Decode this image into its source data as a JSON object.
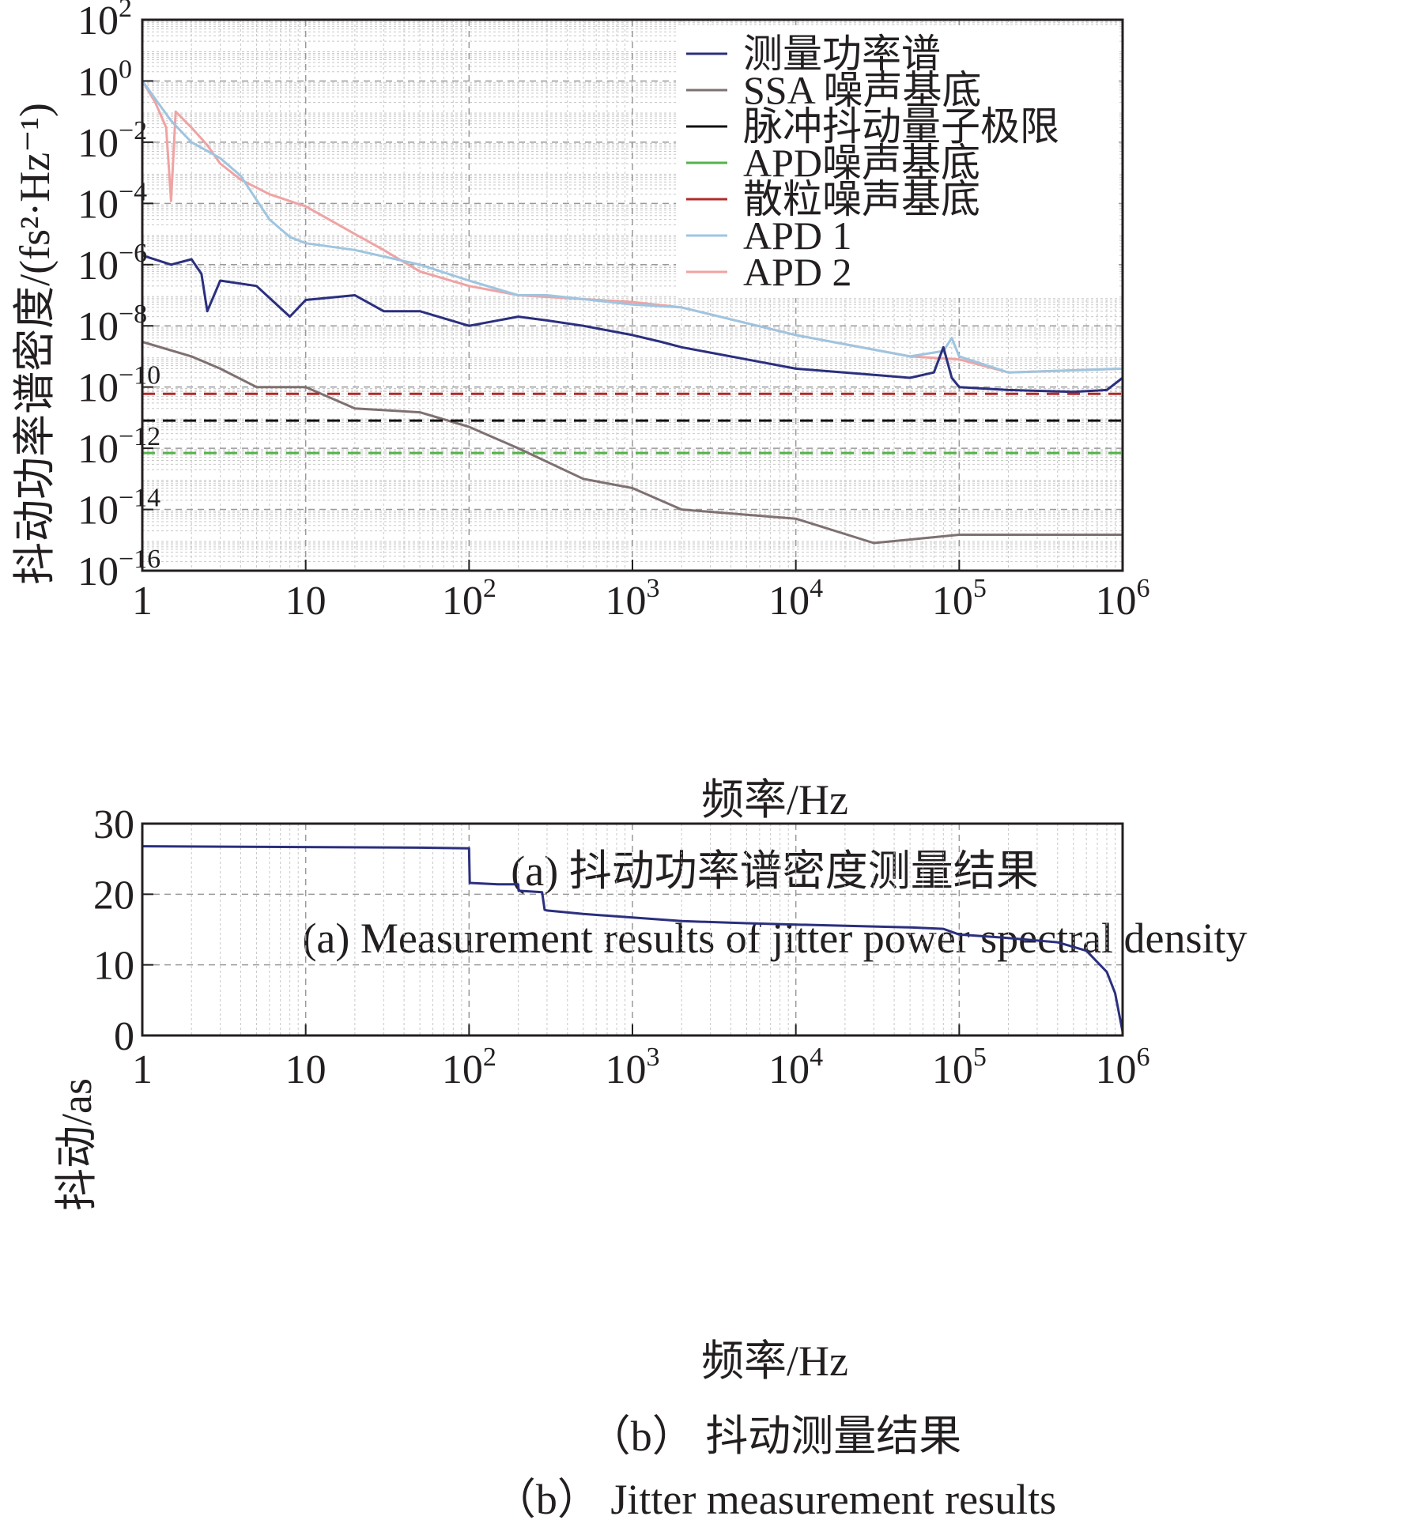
{
  "chart_data": [
    {
      "type": "line",
      "caption_cn": "(a) 抖动功率谱密度测量结果",
      "caption_en": "(a) Measurement results of jitter power spectral density",
      "xlabel": "频率/Hz",
      "ylabel": "抖动功率谱密度/(fs²·Hz⁻¹)",
      "x_scale": "log",
      "y_scale": "log",
      "xlim": [
        1,
        1000000
      ],
      "ylim": [
        1e-16,
        100
      ],
      "x_ticks": [
        {
          "value": 1,
          "base": "1",
          "exp": ""
        },
        {
          "value": 10,
          "base": "10",
          "exp": ""
        },
        {
          "value": 100,
          "base": "10",
          "exp": "2"
        },
        {
          "value": 1000,
          "base": "10",
          "exp": "3"
        },
        {
          "value": 10000,
          "base": "10",
          "exp": "4"
        },
        {
          "value": 100000,
          "base": "10",
          "exp": "5"
        },
        {
          "value": 1000000,
          "base": "10",
          "exp": "6"
        }
      ],
      "y_ticks": [
        {
          "value": 100,
          "base": "10",
          "exp": "2"
        },
        {
          "value": 1,
          "base": "10",
          "exp": "0"
        },
        {
          "value": 0.01,
          "base": "10",
          "exp": "−2"
        },
        {
          "value": 0.0001,
          "base": "10",
          "exp": "−4"
        },
        {
          "value": 1e-06,
          "base": "10",
          "exp": "−6"
        },
        {
          "value": 1e-08,
          "base": "10",
          "exp": "−8"
        },
        {
          "value": 1e-10,
          "base": "10",
          "exp": "−10"
        },
        {
          "value": 1e-12,
          "base": "10",
          "exp": "−12"
        },
        {
          "value": 1e-14,
          "base": "10",
          "exp": "−14"
        },
        {
          "value": 1e-16,
          "base": "10",
          "exp": "−16"
        }
      ],
      "grid": true,
      "legend_position": "top-right",
      "series": [
        {
          "name": "APD 2",
          "color": "#f0a3a3",
          "x": [
            1,
            1.2,
            1.4,
            1.5,
            1.6,
            2,
            2.5,
            3,
            4,
            6,
            10,
            20,
            30,
            50,
            100,
            200,
            1000,
            2000,
            10000,
            50000,
            100000,
            200000,
            1000000
          ],
          "y": [
            1,
            0.2,
            0.03,
            0.00012,
            0.1,
            0.03,
            0.008,
            0.002,
            0.0006,
            0.0002,
            8e-05,
            1e-05,
            3e-06,
            6e-07,
            2e-07,
            1e-07,
            6e-08,
            4e-08,
            5e-09,
            1e-09,
            8e-10,
            3e-10,
            4e-10
          ]
        },
        {
          "name": "APD 1",
          "color": "#9ec5e0",
          "x": [
            1,
            1.5,
            2,
            3,
            4,
            6,
            8,
            10,
            20,
            50,
            100,
            200,
            300,
            1000,
            2000,
            10000,
            50000,
            80000,
            90000,
            100000,
            200000,
            1000000
          ],
          "y": [
            1,
            0.05,
            0.01,
            0.003,
            0.0008,
            3e-05,
            8e-06,
            5e-06,
            3e-06,
            1e-06,
            3e-07,
            1e-07,
            1e-07,
            5e-08,
            4e-08,
            5e-09,
            1e-09,
            1.5e-09,
            4e-09,
            1e-09,
            3e-10,
            4e-10
          ]
        },
        {
          "name": "测量功率谱",
          "color": "#2b2f7e",
          "x": [
            1,
            1.5,
            2,
            2.3,
            2.5,
            3,
            5,
            8,
            10,
            20,
            30,
            50,
            100,
            200,
            300,
            500,
            1000,
            1500,
            2000,
            5000,
            10000,
            30000,
            50000,
            70000,
            80000,
            90000,
            100000,
            200000,
            500000,
            800000,
            1000000
          ],
          "y": [
            2e-06,
            1e-06,
            1.5e-06,
            5e-07,
            3e-08,
            3e-07,
            2e-07,
            2e-08,
            7e-08,
            1e-07,
            3e-08,
            3e-08,
            1e-08,
            2e-08,
            1.5e-08,
            1e-08,
            5e-09,
            3e-09,
            2e-09,
            8e-10,
            4e-10,
            2.5e-10,
            2e-10,
            3e-10,
            2e-09,
            2e-10,
            1e-10,
            8e-11,
            7e-11,
            8e-11,
            2e-10
          ]
        },
        {
          "name": "SSA 噪声基底",
          "color": "#7f7071",
          "x": [
            1,
            2,
            3,
            5,
            10,
            20,
            50,
            100,
            200,
            500,
            1000,
            2000,
            10000,
            30000,
            100000,
            1000000
          ],
          "y": [
            3e-09,
            1e-09,
            4e-10,
            1e-10,
            1e-10,
            2e-11,
            1.5e-11,
            5e-12,
            1e-12,
            1e-13,
            5e-14,
            1e-14,
            5e-15,
            8e-16,
            1.5e-15,
            1.5e-15
          ]
        },
        {
          "name": "散粒噪声基底",
          "color": "#b22a2a",
          "dashed": true,
          "x": [
            1,
            1000000
          ],
          "y": [
            6e-11,
            6e-11
          ]
        },
        {
          "name": "脉冲抖动量子极限",
          "color": "#111111",
          "dashed": true,
          "x": [
            1,
            1000000
          ],
          "y": [
            8e-12,
            8e-12
          ]
        },
        {
          "name": "APD噪声基底",
          "color": "#55b24a",
          "dashed": true,
          "x": [
            1,
            1000000
          ],
          "y": [
            7e-13,
            7e-13
          ]
        }
      ],
      "legend_order": [
        "测量功率谱",
        "SSA 噪声基底",
        "脉冲抖动量子极限",
        "APD噪声基底",
        "散粒噪声基底",
        "APD 1",
        "APD 2"
      ]
    },
    {
      "type": "line",
      "caption_cn": "（b） 抖动测量结果",
      "caption_en": "（b） Jitter measurement results",
      "xlabel": "频率/Hz",
      "ylabel": "抖动/as",
      "x_scale": "log",
      "xlim": [
        1,
        1000000
      ],
      "ylim": [
        0,
        30
      ],
      "x_ticks": [
        {
          "value": 1,
          "base": "1",
          "exp": ""
        },
        {
          "value": 10,
          "base": "10",
          "exp": ""
        },
        {
          "value": 100,
          "base": "10",
          "exp": "2"
        },
        {
          "value": 1000,
          "base": "10",
          "exp": "3"
        },
        {
          "value": 10000,
          "base": "10",
          "exp": "4"
        },
        {
          "value": 100000,
          "base": "10",
          "exp": "5"
        },
        {
          "value": 1000000,
          "base": "10",
          "exp": "6"
        }
      ],
      "y_ticks": [
        {
          "value": 0,
          "label": "0"
        },
        {
          "value": 10,
          "label": "10"
        },
        {
          "value": 20,
          "label": "20"
        },
        {
          "value": 30,
          "label": "30"
        }
      ],
      "grid": true,
      "series": [
        {
          "color": "#2b2f7e",
          "x": [
            1,
            50,
            99,
            100,
            101,
            150,
            200,
            201,
            280,
            290,
            300,
            500,
            1000,
            2000,
            5000,
            10000,
            50000,
            80000,
            100000,
            200000,
            400000,
            600000,
            800000,
            900000,
            1000000
          ],
          "y": [
            26.8,
            26.6,
            26.5,
            26.5,
            21.6,
            21.4,
            21.4,
            20.5,
            20.3,
            17.8,
            17.7,
            17.2,
            16.7,
            16.2,
            15.9,
            15.7,
            15.3,
            15.1,
            14.3,
            13.8,
            13.2,
            12,
            9,
            6,
            0.5
          ]
        }
      ]
    }
  ]
}
